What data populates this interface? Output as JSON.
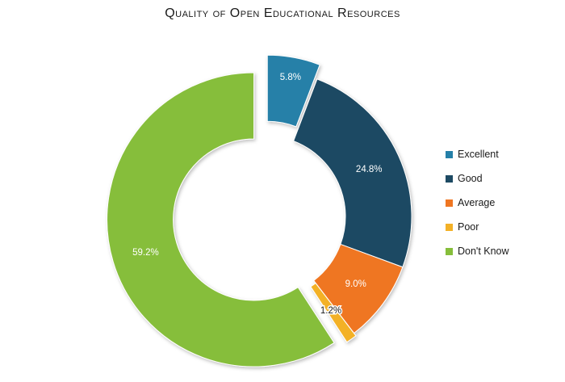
{
  "chart_data": {
    "type": "pie",
    "title": "Quality of Open Educational Resources",
    "style": "donut",
    "exploded_slices": [
      "Excellent",
      "Don't Know"
    ],
    "legend_position": "right",
    "slices": [
      {
        "label": "Excellent",
        "value": 5.8,
        "display": "5.8%",
        "color": "#2580a8"
      },
      {
        "label": "Good",
        "value": 24.8,
        "display": "24.8%",
        "color": "#1d4a63"
      },
      {
        "label": "Average",
        "value": 9.0,
        "display": "9.0%",
        "color": "#ef7622"
      },
      {
        "label": "Poor",
        "value": 1.2,
        "display": "1.2%",
        "color": "#f3b127"
      },
      {
        "label": "Don't Know",
        "value": 59.2,
        "display": "59.2%",
        "color": "#86be3b"
      }
    ]
  }
}
